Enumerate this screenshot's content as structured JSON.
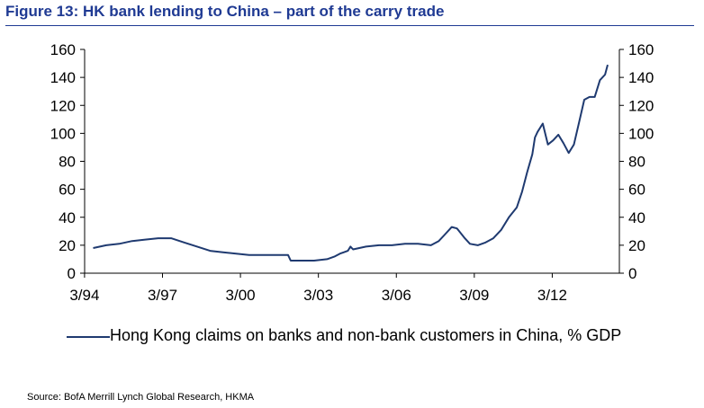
{
  "header": {
    "title": "Figure 13: HK bank lending to China – part of the carry trade"
  },
  "footer": {
    "source": "Source: BofA Merrill Lynch Global Research, HKMA"
  },
  "chart_data": {
    "type": "line",
    "title": "Figure 13: HK bank lending to China – part of the carry trade",
    "xlabel": "",
    "ylabel": "",
    "x_ticks": [
      "3/94",
      "3/97",
      "3/00",
      "3/03",
      "3/06",
      "3/09",
      "3/12"
    ],
    "y_ticks": [
      0,
      20,
      40,
      60,
      80,
      100,
      120,
      140,
      160
    ],
    "ylim": [
      0,
      160
    ],
    "y2lim": [
      0,
      160
    ],
    "x_range": [
      1994.17,
      2014.75
    ],
    "grid": false,
    "legend_position": "bottom",
    "line_color": "#1f3a70",
    "series": [
      {
        "name": "Hong Kong claims on banks and non-bank customers in China, % GDP",
        "x": [
          1994.5,
          1995.0,
          1995.5,
          1996.0,
          1996.5,
          1997.0,
          1997.5,
          1998.0,
          1998.5,
          1999.0,
          1999.5,
          2000.0,
          2000.5,
          2001.0,
          2001.5,
          2002.0,
          2002.1,
          2002.5,
          2003.0,
          2003.5,
          2003.8,
          2004.0,
          2004.3,
          2004.4,
          2004.5,
          2005.0,
          2005.5,
          2006.0,
          2006.5,
          2007.0,
          2007.5,
          2007.8,
          2008.0,
          2008.3,
          2008.5,
          2008.8,
          2009.0,
          2009.3,
          2009.6,
          2009.9,
          2010.2,
          2010.5,
          2010.8,
          2011.0,
          2011.2,
          2011.4,
          2011.5,
          2011.6,
          2011.8,
          2012.0,
          2012.2,
          2012.4,
          2012.6,
          2012.8,
          2013.0,
          2013.2,
          2013.4,
          2013.6,
          2013.8,
          2014.0,
          2014.2,
          2014.3
        ],
        "y": [
          18,
          20,
          21,
          23,
          24,
          25,
          25,
          22,
          19,
          16,
          15,
          14,
          13,
          13,
          13,
          13,
          9,
          9,
          9,
          10,
          12,
          14,
          16,
          19,
          17,
          19,
          20,
          20,
          21,
          21,
          20,
          23,
          27,
          33,
          32,
          25,
          21,
          20,
          22,
          25,
          31,
          40,
          47,
          58,
          72,
          85,
          97,
          101,
          107,
          92,
          95,
          99,
          93,
          86,
          92,
          108,
          124,
          126,
          126,
          138,
          142,
          149
        ]
      }
    ]
  }
}
